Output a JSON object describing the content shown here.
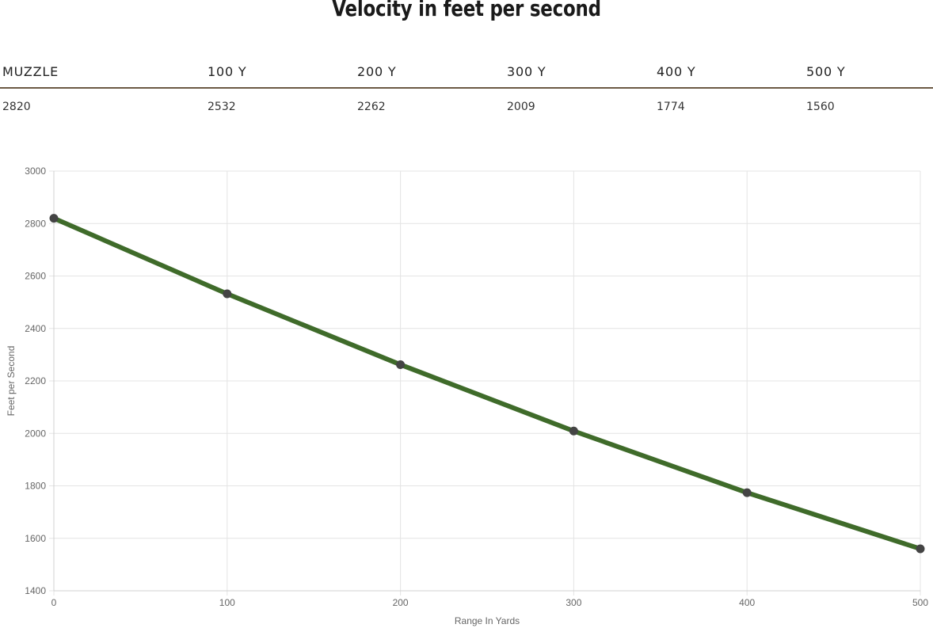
{
  "title": "Velocity in feet per second",
  "table": {
    "headers": [
      "MUZZLE",
      "100 Y",
      "200 Y",
      "300 Y",
      "400 Y",
      "500 Y"
    ],
    "values": [
      "2820",
      "2532",
      "2262",
      "2009",
      "1774",
      "1560"
    ]
  },
  "colors": {
    "line": "#3f6b2a",
    "point": "#444444",
    "grid": "#e4e4e4",
    "table_rule": "#6b5a44"
  },
  "chart_data": {
    "type": "line",
    "x": [
      0,
      100,
      200,
      300,
      400,
      500
    ],
    "series": [
      {
        "values": [
          2820,
          2532,
          2262,
          2009,
          1774,
          1560
        ]
      }
    ],
    "xlabel": "Range In Yards",
    "ylabel": "Feet per Second",
    "xlim": [
      0,
      500
    ],
    "ylim": [
      1400,
      3000
    ],
    "x_ticks": [
      "0",
      "100",
      "200",
      "300",
      "400",
      "500"
    ],
    "y_ticks": [
      "1400",
      "1600",
      "1800",
      "2000",
      "2200",
      "2400",
      "2600",
      "2800",
      "3000"
    ],
    "grid": true,
    "legend": "none"
  }
}
